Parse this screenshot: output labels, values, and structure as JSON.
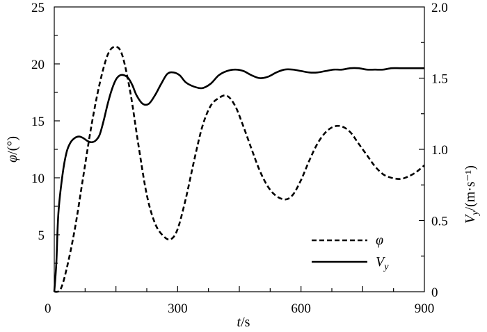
{
  "chart_data": {
    "type": "line",
    "title": "",
    "xlabel": {
      "italic": "t",
      "rest": "/s"
    },
    "ylabel_left": {
      "italic": "φ",
      "rest": "/(°)"
    },
    "ylabel_right": {
      "italic": "V",
      "sub": "y",
      "rest": "/(m·s⁻¹)"
    },
    "xlim": [
      0,
      900
    ],
    "ylim_left": [
      0,
      25
    ],
    "ylim_right": [
      0,
      2.0
    ],
    "x_ticks": [
      "0",
      "300",
      "600",
      "900"
    ],
    "x_tick_values": [
      0,
      300,
      600,
      900
    ],
    "y_left_ticks": [
      "5",
      "10",
      "15",
      "20",
      "25"
    ],
    "y_left_tick_values": [
      5,
      10,
      15,
      20,
      25
    ],
    "y_right_ticks": [
      "0",
      "0.5",
      "1.0",
      "1.5",
      "2.0"
    ],
    "y_right_tick_values": [
      0,
      0.5,
      1.0,
      1.5,
      2.0
    ],
    "grid": false,
    "legend_position": "bottom-right",
    "series": [
      {
        "name": "φ",
        "axis": "left",
        "style": "dashed",
        "x": [
          0,
          15,
          30,
          50,
          70,
          90,
          110,
          130,
          148,
          165,
          185,
          205,
          225,
          245,
          265,
          283,
          300,
          320,
          340,
          360,
          380,
          400,
          420,
          440,
          460,
          480,
          500,
          520,
          540,
          562,
          580,
          600,
          620,
          640,
          660,
          680,
          700,
          720,
          740,
          760,
          780,
          800,
          820,
          842,
          860,
          880,
          900
        ],
        "values": [
          0,
          0.2,
          2.0,
          5.5,
          10.0,
          14.5,
          18.2,
          20.8,
          21.5,
          20.8,
          17.5,
          12.8,
          8.5,
          6.0,
          4.9,
          4.6,
          5.5,
          8.2,
          11.5,
          14.5,
          16.3,
          17.0,
          17.2,
          16.3,
          14.5,
          12.5,
          10.6,
          9.2,
          8.4,
          8.1,
          8.5,
          9.8,
          11.5,
          13.0,
          14.0,
          14.5,
          14.5,
          14.0,
          13.0,
          12.0,
          11.0,
          10.3,
          10.0,
          9.9,
          10.1,
          10.5,
          11.1
        ]
      },
      {
        "name": "V",
        "name_sub": "y",
        "axis": "right",
        "style": "solid",
        "x": [
          0,
          5,
          10,
          20,
          30,
          40,
          50,
          60,
          70,
          80,
          90,
          100,
          110,
          120,
          130,
          140,
          150,
          160,
          170,
          180,
          190,
          200,
          215,
          230,
          245,
          260,
          275,
          290,
          305,
          320,
          340,
          360,
          380,
          400,
          420,
          440,
          460,
          480,
          500,
          520,
          540,
          560,
          580,
          600,
          620,
          640,
          660,
          680,
          700,
          720,
          740,
          760,
          780,
          800,
          820,
          840,
          860,
          880,
          900
        ],
        "values": [
          0,
          0.2,
          0.55,
          0.82,
          0.98,
          1.05,
          1.08,
          1.09,
          1.08,
          1.06,
          1.05,
          1.06,
          1.1,
          1.2,
          1.32,
          1.42,
          1.49,
          1.52,
          1.52,
          1.5,
          1.45,
          1.38,
          1.32,
          1.32,
          1.38,
          1.46,
          1.53,
          1.54,
          1.52,
          1.47,
          1.44,
          1.43,
          1.46,
          1.52,
          1.55,
          1.56,
          1.55,
          1.52,
          1.5,
          1.51,
          1.54,
          1.56,
          1.56,
          1.55,
          1.54,
          1.54,
          1.55,
          1.56,
          1.56,
          1.57,
          1.57,
          1.56,
          1.56,
          1.56,
          1.57,
          1.57,
          1.57,
          1.57,
          1.57
        ]
      }
    ]
  }
}
